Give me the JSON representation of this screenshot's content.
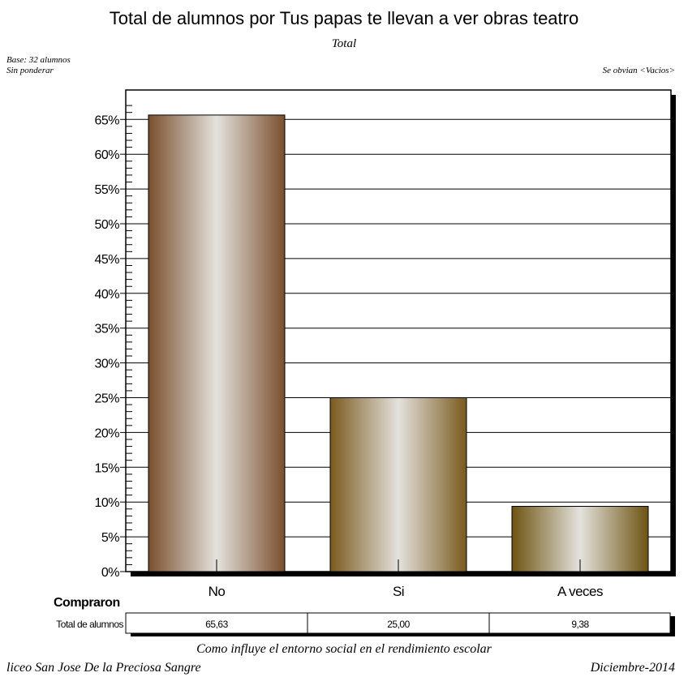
{
  "header": {
    "title": "Total de alumnos por Tus papas te llevan a ver obras teatro",
    "subtitle": "Total",
    "base_line1": "Base: 32 alumnos",
    "base_line2": "Sin ponderar",
    "omitted_note": "Se obvian <Vacios>"
  },
  "chart_data": {
    "type": "bar",
    "categories": [
      "No",
      "Si",
      "A veces"
    ],
    "values": [
      65.63,
      25.0,
      9.38
    ],
    "value_labels": [
      "65,63",
      "25,00",
      "9,38"
    ],
    "yticks": [
      "0%",
      "5%",
      "10%",
      "15%",
      "20%",
      "25%",
      "30%",
      "35%",
      "40%",
      "45%",
      "50%",
      "55%",
      "60%",
      "65%"
    ],
    "ylim": [
      0,
      68
    ],
    "grid": true,
    "bar_colors": [
      "#7a4f2e",
      "#7a5a1e",
      "#6e5412"
    ]
  },
  "table": {
    "group_label": "Compraron",
    "row_label": "Total de alumnos"
  },
  "footer": {
    "center": "Como influye el entorno social en el rendimiento escolar",
    "left": "liceo San Jose De la Preciosa Sangre",
    "right": "Diciembre-2014"
  }
}
